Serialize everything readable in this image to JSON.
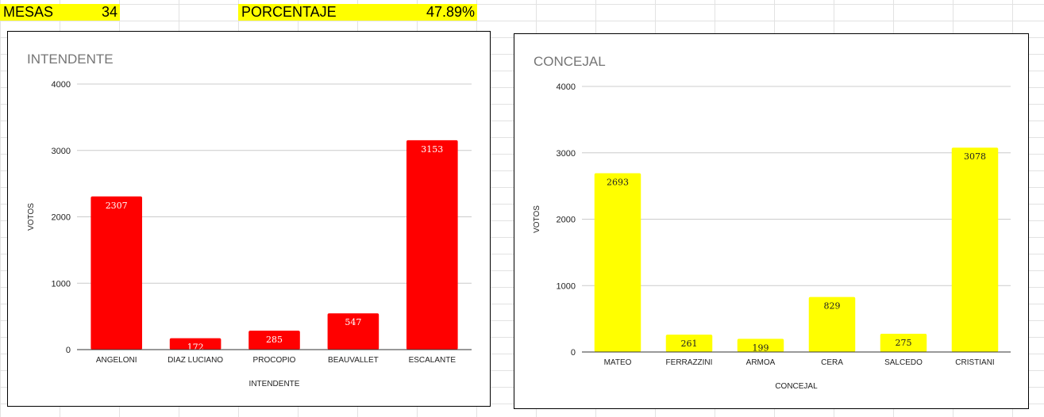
{
  "sheet": {
    "mesas_label": "MESAS",
    "mesas_value": "34",
    "porcentaje_label": "PORCENTAJE",
    "porcentaje_value": "47.89%",
    "highlight_color": "#ffff00"
  },
  "chart_data": [
    {
      "type": "bar",
      "title": "INTENDENTE",
      "xlabel": "INTENDENTE",
      "ylabel": "VOTOS",
      "categories": [
        "ANGELONI",
        "DIAZ LUCIANO",
        "PROCOPIO",
        "BEAUVALLET",
        "ESCALANTE"
      ],
      "values": [
        2307,
        172,
        285,
        547,
        3153
      ],
      "ylim": [
        0,
        4000
      ],
      "yticks": [
        0,
        1000,
        2000,
        3000,
        4000
      ],
      "bar_color": "#ff0000",
      "data_labels": true,
      "grid": true,
      "legend": "none"
    },
    {
      "type": "bar",
      "title": "CONCEJAL",
      "xlabel": "CONCEJAL",
      "ylabel": "VOTOS",
      "categories": [
        "MATEO",
        "FERRAZZINI",
        "ARMOA",
        "CERA",
        "SALCEDO",
        "CRISTIANI"
      ],
      "values": [
        2693,
        261,
        199,
        829,
        275,
        3078
      ],
      "ylim": [
        0,
        4000
      ],
      "yticks": [
        0,
        1000,
        2000,
        3000,
        4000
      ],
      "bar_color": "#ffff00",
      "data_labels": true,
      "grid": true,
      "legend": "none"
    }
  ]
}
